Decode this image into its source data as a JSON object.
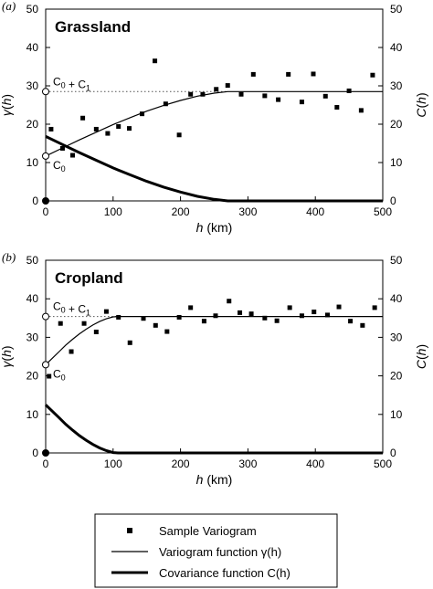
{
  "legend": {
    "items": [
      {
        "label": "Sample Variogram",
        "kind": "points"
      },
      {
        "label": "Variogram function γ(h)",
        "kind": "thin-line"
      },
      {
        "label": "Covariance function C(h)",
        "kind": "thick-line"
      }
    ]
  },
  "chart_data": [
    {
      "panel_tag": "(a)",
      "type": "scatter",
      "title": "Grassland",
      "xlabel": "h (km)",
      "ylabel_left": "γ(h)",
      "ylabel_right": "C(h)",
      "xlim": [
        0,
        500
      ],
      "ylim": [
        0,
        50
      ],
      "xticks": [
        0,
        100,
        200,
        300,
        400,
        500
      ],
      "yticks": [
        0,
        10,
        20,
        30,
        40,
        50
      ],
      "nugget_label": "C0",
      "sill_label": "C0 + C1",
      "nugget": 11.7,
      "sill": 28.5,
      "range": 270,
      "series": [
        {
          "name": "Sample Variogram",
          "x": [
            8,
            25,
            40,
            55,
            75,
            92,
            108,
            124,
            143,
            162,
            178,
            198,
            215,
            233,
            253,
            270,
            290,
            308,
            325,
            345,
            360,
            380,
            397,
            415,
            432,
            450,
            468,
            485
          ],
          "y": [
            18.7,
            13.7,
            11.9,
            21.6,
            18.7,
            17.6,
            19.4,
            18.9,
            22.7,
            36.5,
            25.3,
            17.2,
            27.8,
            27.8,
            29.1,
            30.1,
            27.8,
            33.0,
            27.4,
            26.4,
            33.0,
            25.8,
            33.1,
            27.3,
            24.4,
            28.7,
            23.6,
            32.8
          ]
        }
      ],
      "lines": {
        "variogram": {
          "x": [
            0,
            25,
            50,
            75,
            100,
            125,
            150,
            175,
            200,
            225,
            250,
            270,
            500
          ],
          "y": [
            11.7,
            13.8,
            15.9,
            17.9,
            19.9,
            21.7,
            23.4,
            24.9,
            26.2,
            27.3,
            28.1,
            28.5,
            28.5
          ]
        },
        "covariance": {
          "x": [
            0,
            25,
            50,
            75,
            100,
            125,
            150,
            175,
            200,
            225,
            250,
            270,
            500
          ],
          "y": [
            16.8,
            14.7,
            12.6,
            10.6,
            8.6,
            6.8,
            5.1,
            3.6,
            2.3,
            1.2,
            0.4,
            0.0,
            0.0
          ]
        }
      }
    },
    {
      "panel_tag": "(b)",
      "type": "scatter",
      "title": "Cropland",
      "xlabel": "h (km)",
      "ylabel_left": "γ(h)",
      "ylabel_right": "C(h)",
      "xlim": [
        0,
        500
      ],
      "ylim": [
        0,
        50
      ],
      "xticks": [
        0,
        100,
        200,
        300,
        400,
        500
      ],
      "yticks": [
        0,
        10,
        20,
        30,
        40,
        50
      ],
      "nugget_label": "C0",
      "sill_label": "C0 + C1",
      "nugget": 22.9,
      "sill": 35.4,
      "range": 108,
      "series": [
        {
          "name": "Sample Variogram",
          "x": [
            5,
            22,
            38,
            57,
            75,
            90,
            108,
            125,
            145,
            163,
            180,
            198,
            215,
            235,
            252,
            272,
            288,
            305,
            325,
            343,
            362,
            380,
            398,
            418,
            435,
            452,
            470,
            488
          ],
          "y": [
            19.9,
            33.6,
            26.3,
            33.6,
            31.4,
            36.7,
            35.2,
            28.6,
            34.9,
            33.1,
            31.5,
            35.2,
            37.7,
            34.2,
            35.6,
            39.4,
            36.4,
            36.1,
            35.0,
            34.3,
            37.7,
            35.6,
            36.6,
            35.8,
            37.9,
            34.2,
            33.1,
            37.7
          ]
        }
      ],
      "lines": {
        "variogram": {
          "x": [
            0,
            10,
            20,
            30,
            40,
            50,
            60,
            70,
            80,
            90,
            100,
            108,
            500
          ],
          "y": [
            22.9,
            24.6,
            26.3,
            28.0,
            29.5,
            30.9,
            32.1,
            33.2,
            34.1,
            34.8,
            35.3,
            35.4,
            35.4
          ]
        },
        "covariance": {
          "x": [
            0,
            10,
            20,
            30,
            40,
            50,
            60,
            70,
            80,
            90,
            100,
            108,
            500
          ],
          "y": [
            12.5,
            10.8,
            9.1,
            7.4,
            5.9,
            4.5,
            3.3,
            2.2,
            1.3,
            0.6,
            0.1,
            0.0,
            0.0
          ]
        }
      }
    }
  ]
}
